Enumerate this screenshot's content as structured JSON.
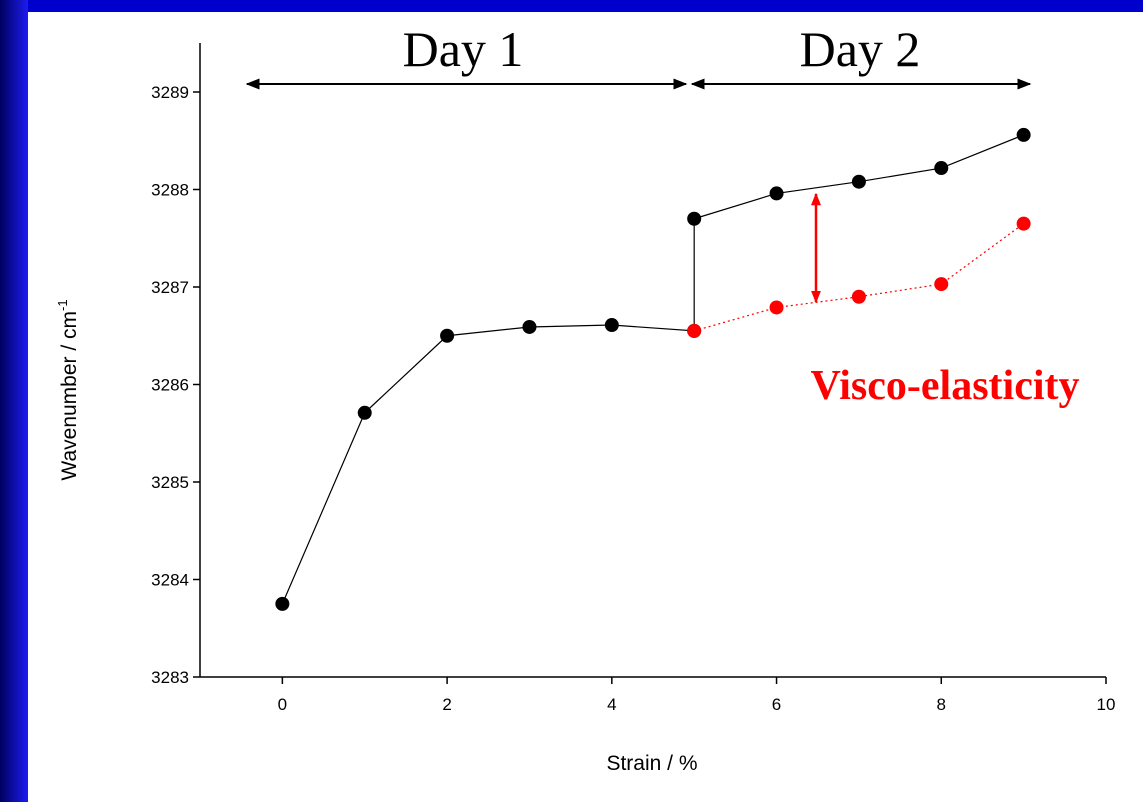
{
  "chart_data": {
    "type": "line",
    "x_label": "Strain / %",
    "y_label": "Wavenumber / cm",
    "y_label_superscript": "-1",
    "annotations": [
      "Day 1",
      "Day 2",
      "Visco-elasticity"
    ],
    "xlim": [
      -1,
      10
    ],
    "xticks": [
      0,
      2,
      4,
      6,
      8,
      10
    ],
    "ylim": [
      3283,
      3289.5
    ],
    "yticks": [
      3283,
      3284,
      3285,
      3286,
      3287,
      3288,
      3289
    ],
    "series": [
      {
        "color": "#000000",
        "line_style": "solid",
        "x": [
          0,
          1,
          2,
          3,
          4,
          5,
          5,
          6,
          7,
          8,
          9
        ],
        "values": [
          3283.75,
          3285.71,
          3286.5,
          3286.59,
          3286.61,
          3286.55,
          3287.7,
          3287.96,
          3288.08,
          3288.22,
          3288.56
        ]
      },
      {
        "color": "#ff0000",
        "line_style": "dotted",
        "x": [
          5,
          6,
          7,
          8,
          9
        ],
        "values": [
          3286.55,
          3286.79,
          3286.9,
          3287.03,
          3287.65
        ]
      }
    ]
  }
}
